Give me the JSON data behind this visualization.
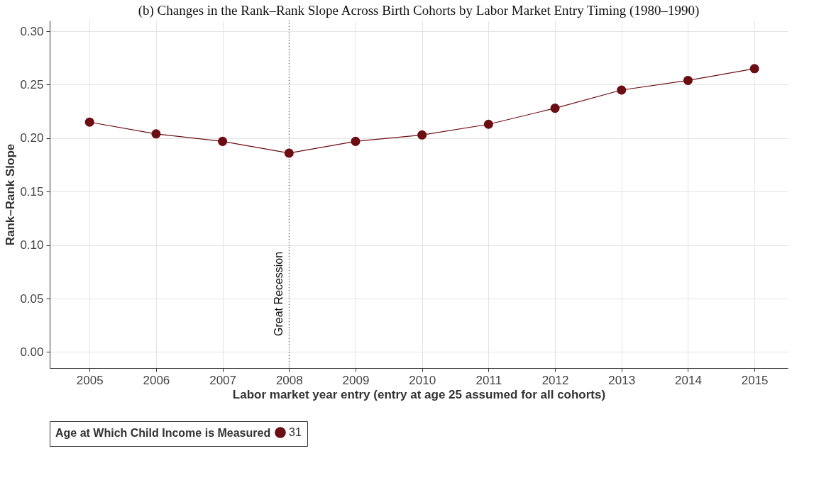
{
  "chart_data": {
    "type": "line",
    "title": "(b) Changes in the Rank–Rank Slope Across Birth Cohorts by Labor Market Entry Timing (1980–1990)",
    "xlabel": "Labor market year entry (entry at age 25 assumed for all cohorts)",
    "ylabel": "Rank–Rank Slope",
    "legend_title": "Age at Which Child Income is Measured",
    "x": [
      2005,
      2006,
      2007,
      2008,
      2009,
      2010,
      2011,
      2012,
      2013,
      2014,
      2015
    ],
    "series": [
      {
        "name": "31",
        "color": "#6b0d12",
        "values": [
          0.215,
          0.204,
          0.197,
          0.186,
          0.197,
          0.203,
          0.213,
          0.228,
          0.245,
          0.254,
          0.265
        ]
      }
    ],
    "xlim": [
      2004.4,
      2015.5
    ],
    "xticks": [
      2005,
      2006,
      2007,
      2008,
      2009,
      2010,
      2011,
      2012,
      2013,
      2014,
      2015
    ],
    "ylim": [
      -0.015,
      0.31
    ],
    "yticks": [
      {
        "value": 0,
        "label": "0.00"
      },
      0.05,
      {
        "value": 0.1,
        "label": "0.10"
      },
      0.15,
      {
        "value": 0.2,
        "label": "0.20"
      },
      0.25,
      {
        "value": 0.3,
        "label": "0.30"
      }
    ],
    "ref_lines": [
      {
        "axis": "x",
        "value": 2008,
        "label": "Great Recession",
        "line_style": "dotted",
        "color": "#333333"
      }
    ],
    "grid": true,
    "legend": "bottom",
    "marker": "circle",
    "line_style": "solid"
  }
}
